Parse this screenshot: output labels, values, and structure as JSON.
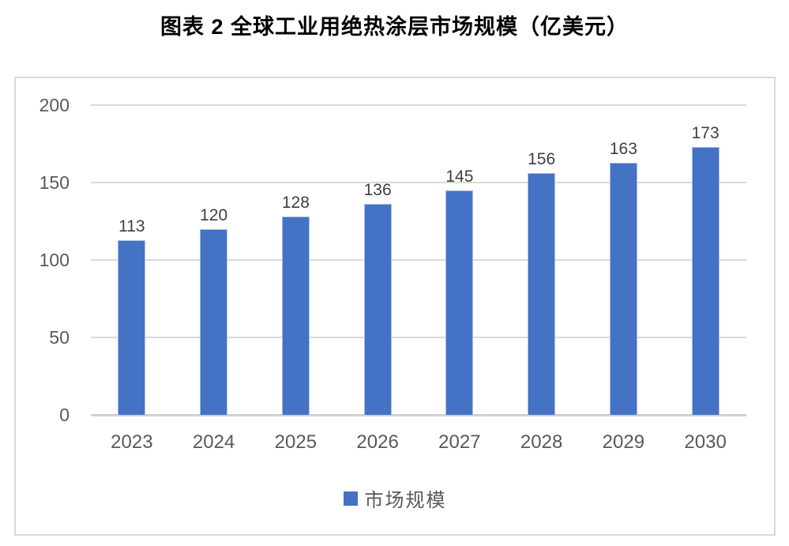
{
  "title": "图表 2 全球工业用绝热涂层市场规模（亿美元）",
  "legend": {
    "label": "市场规模",
    "swatch_color": "#4472c4"
  },
  "colors": {
    "bar": "#4472c4",
    "gridline": "#d9d9d9",
    "axis_text": "#595959",
    "data_label": "#3f3f3f",
    "frame_border": "#d9d9d9",
    "title_text": "#000000"
  },
  "chart_data": {
    "type": "bar",
    "title": "图表 2 全球工业用绝热涂层市场规模（亿美元）",
    "categories": [
      "2023",
      "2024",
      "2025",
      "2026",
      "2027",
      "2028",
      "2029",
      "2030"
    ],
    "values": [
      113,
      120,
      128,
      136,
      145,
      156,
      163,
      173
    ],
    "series_name": "市场规模",
    "xlabel": "",
    "ylabel": "",
    "yticks": [
      200,
      150,
      100,
      50,
      0
    ],
    "ylim": [
      0,
      200
    ],
    "grid": "horizontal",
    "legend_position": "bottom"
  }
}
